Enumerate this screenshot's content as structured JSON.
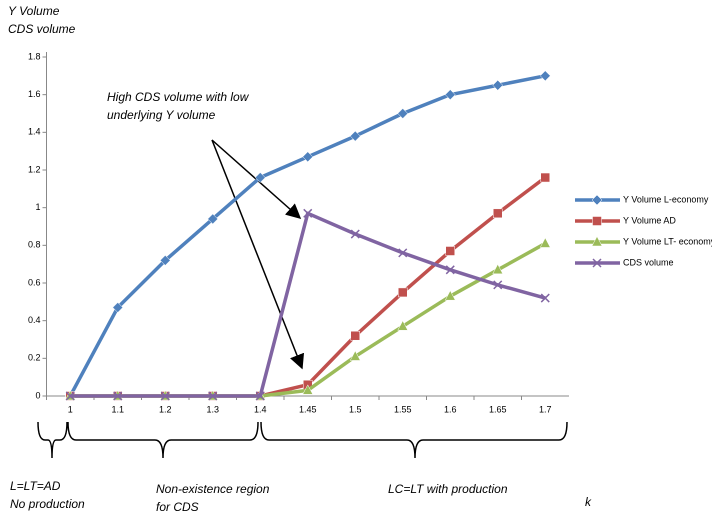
{
  "chart_data": {
    "type": "line",
    "y_title": [
      "Y Volume",
      "CDS volume"
    ],
    "x_title": "k",
    "categories": [
      "1",
      "1.1",
      "1.2",
      "1.3",
      "1.4",
      "1.45",
      "1.5",
      "1.55",
      "1.6",
      "1.65",
      "1.7"
    ],
    "series": [
      {
        "name": "Y Volume L-economy",
        "color": "#4f81bd",
        "marker": "diamond",
        "values": [
          0,
          0.47,
          0.72,
          0.94,
          1.16,
          1.27,
          1.38,
          1.5,
          1.6,
          1.65,
          1.7
        ]
      },
      {
        "name": "Y Volume AD",
        "color": "#c0504d",
        "marker": "square",
        "values": [
          0,
          0,
          0,
          0,
          0,
          0.06,
          0.32,
          0.55,
          0.77,
          0.97,
          1.16
        ]
      },
      {
        "name": "Y Volume  LT- economy",
        "color": "#9bbb59",
        "marker": "triangle",
        "values": [
          0,
          0,
          0,
          0,
          0,
          0.03,
          0.21,
          0.37,
          0.53,
          0.67,
          0.81
        ]
      },
      {
        "name": "CDS volume",
        "color": "#8064a2",
        "marker": "x",
        "values": [
          0,
          0,
          0,
          0,
          0,
          0.97,
          0.86,
          0.76,
          0.67,
          0.59,
          0.52
        ]
      }
    ],
    "ylim": [
      0,
      1.8
    ],
    "yticks": [
      0,
      0.2,
      0.4,
      0.6,
      0.8,
      1,
      1.2,
      1.4,
      1.6,
      1.8
    ],
    "legend": "right",
    "annotation": [
      "High CDS volume with low",
      "underlying Y volume"
    ],
    "regions": [
      [
        "L=LT=AD",
        "No production"
      ],
      [
        "Non-existence region",
        "for CDS"
      ],
      [
        "LC=LT with production"
      ]
    ]
  }
}
